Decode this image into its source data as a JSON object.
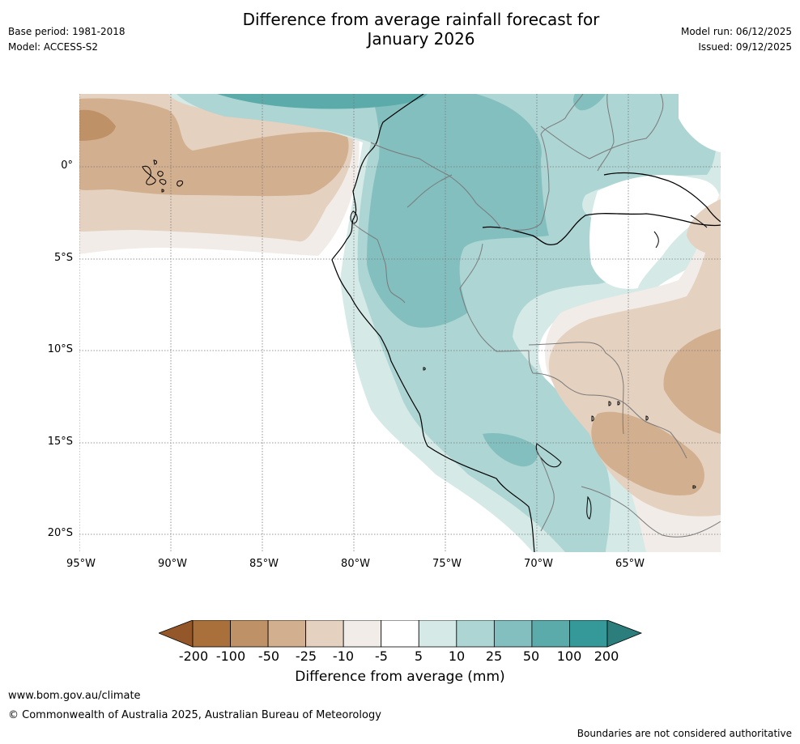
{
  "header": {
    "title_line1": "Difference from average rainfall forecast for",
    "title_line2": "January 2026",
    "base_period": "Base period: 1981-2018",
    "model": "Model: ACCESS-S2",
    "model_run": "Model run: 06/12/2025",
    "issued": "Issued: 09/12/2025"
  },
  "map": {
    "latitude_labels": [
      "0°",
      "5°S",
      "10°S",
      "15°S",
      "20°S"
    ],
    "longitude_labels": [
      "95°W",
      "90°W",
      "85°W",
      "80°W",
      "75°W",
      "70°W",
      "65°W"
    ]
  },
  "colorbar": {
    "ticks": [
      "-200",
      "-100",
      "-50",
      "-25",
      "-10",
      "-5",
      "5",
      "10",
      "25",
      "50",
      "100",
      "200"
    ],
    "colors": [
      "#A9703B",
      "#BF9166",
      "#D2AF8E",
      "#E4D1BF",
      "#F1ECE7",
      "#FFFFFF",
      "#D5E9E7",
      "#ACD5D3",
      "#82BFBE",
      "#5AABA9",
      "#35999A",
      "#2C7E7D"
    ],
    "title": "Difference from average (mm)"
  },
  "footer": {
    "url": "www.bom.gov.au/climate",
    "copyright": "© Commonwealth of Australia 2025, Australian Bureau of Meteorology",
    "disclaimer": "Boundaries are not considered authoritative"
  }
}
